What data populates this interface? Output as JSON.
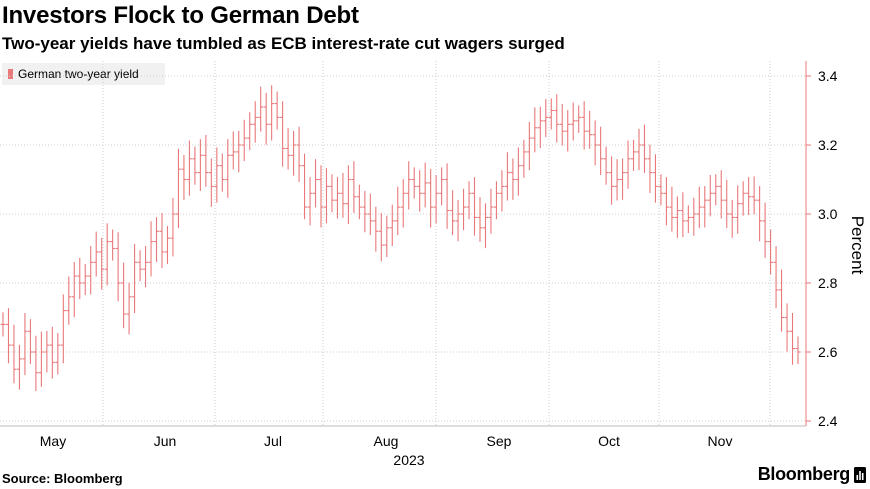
{
  "header": {
    "title": "Investors Flock to German Debt",
    "subtitle": "Two-year yields have tumbled as ECB interest-rate cut wagers surged"
  },
  "footer": {
    "source": "Source: Bloomberg",
    "brand": "Bloomberg"
  },
  "colors": {
    "series": "#e8787a",
    "grid": "#cfcfcf",
    "axis": "#e8787a"
  },
  "chart_data": {
    "type": "line",
    "title": "Investors Flock to German Debt",
    "subtitle": "Two-year yields have tumbled as ECB interest-rate cut wagers surged",
    "ylabel": "Percent",
    "ylim": [
      2.4,
      3.4
    ],
    "yticks": [
      "3.4",
      "3.2",
      "3.0",
      "2.8",
      "2.6",
      "2.4"
    ],
    "xticks": [
      "May",
      "Jun",
      "Jul",
      "Aug",
      "Sep",
      "Oct",
      "Nov"
    ],
    "xyear": "2023",
    "grid": true,
    "legend_position": "top-left",
    "series": [
      {
        "name": "German two-year yield",
        "style": "ohlc-bars",
        "values": [
          2.68,
          2.62,
          2.55,
          2.58,
          2.66,
          2.6,
          2.54,
          2.6,
          2.62,
          2.57,
          2.62,
          2.72,
          2.76,
          2.82,
          2.8,
          2.82,
          2.86,
          2.89,
          2.84,
          2.92,
          2.9,
          2.8,
          2.71,
          2.76,
          2.86,
          2.84,
          2.86,
          2.92,
          2.95,
          2.89,
          2.93,
          3.0,
          3.13,
          3.1,
          3.16,
          3.12,
          3.17,
          3.12,
          3.08,
          3.14,
          3.1,
          3.17,
          3.18,
          3.2,
          3.22,
          3.26,
          3.28,
          3.31,
          3.26,
          3.32,
          3.28,
          3.19,
          3.17,
          3.2,
          3.14,
          3.02,
          3.06,
          3.1,
          3.02,
          3.08,
          3.04,
          3.06,
          3.03,
          3.1,
          3.05,
          3.02,
          3.0,
          2.98,
          2.95,
          2.91,
          2.96,
          2.98,
          3.02,
          3.06,
          3.1,
          3.08,
          3.06,
          3.09,
          3.02,
          3.06,
          3.1,
          3.01,
          2.98,
          3.0,
          3.02,
          3.06,
          2.99,
          2.96,
          2.99,
          3.02,
          3.06,
          3.08,
          3.12,
          3.1,
          3.14,
          3.18,
          3.22,
          3.25,
          3.27,
          3.28,
          3.3,
          3.26,
          3.24,
          3.26,
          3.27,
          3.28,
          3.24,
          3.23,
          3.2,
          3.16,
          3.12,
          3.08,
          3.1,
          3.12,
          3.16,
          3.18,
          3.2,
          3.16,
          3.12,
          3.08,
          3.06,
          3.02,
          2.99,
          3.01,
          2.98,
          2.99,
          3.0,
          3.02,
          3.04,
          3.06,
          3.08,
          3.04,
          3.0,
          2.99,
          3.03,
          3.06,
          3.05,
          3.04,
          2.98,
          2.92,
          2.86,
          2.78,
          2.7,
          2.66,
          2.61,
          2.6
        ]
      }
    ]
  }
}
